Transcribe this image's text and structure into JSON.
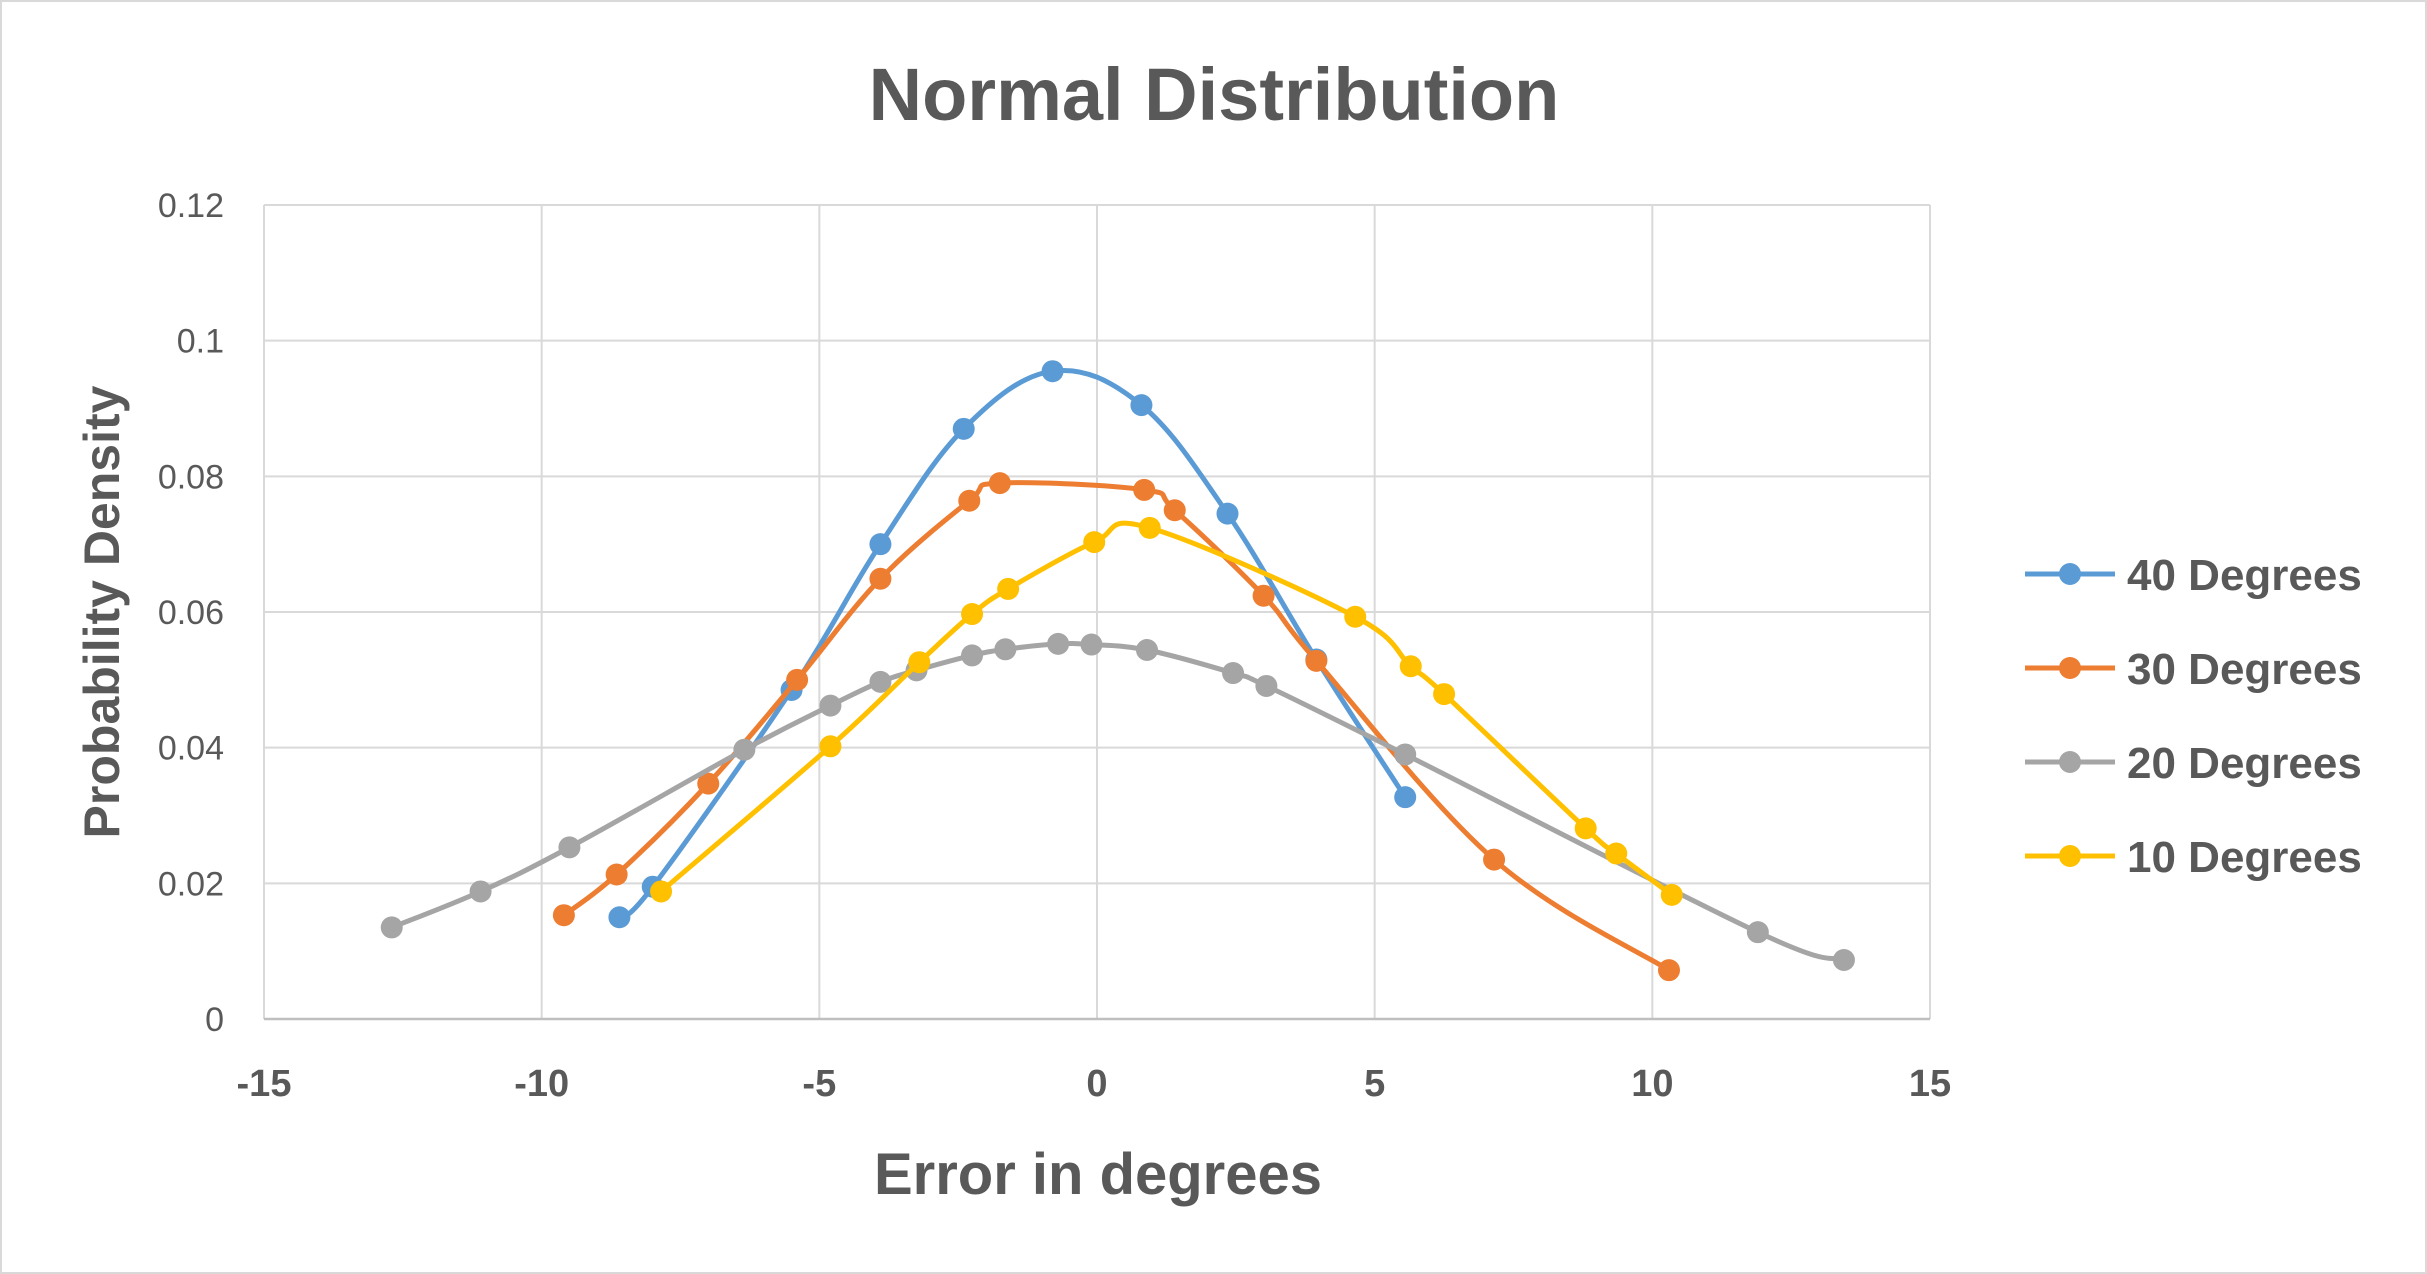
{
  "chart_data": {
    "type": "scatter",
    "title": "Normal Distribution",
    "xlabel": "Error in degrees",
    "ylabel": "Probability Density",
    "xlim": [
      -15,
      15
    ],
    "ylim": [
      0,
      0.12
    ],
    "x_ticks": [
      -15,
      -10,
      -5,
      0,
      5,
      10,
      15
    ],
    "y_ticks": [
      0,
      0.02,
      0.04,
      0.06,
      0.08,
      0.1,
      0.12
    ],
    "x_tick_labels": [
      "-15",
      "-10",
      "-5",
      "0",
      "5",
      "10",
      "15"
    ],
    "y_tick_labels": [
      "0",
      "0.02",
      "0.04",
      "0.06",
      "0.08",
      "0.1",
      "0.12"
    ],
    "grid": true,
    "smoothed_lines": true,
    "legend_position": "right",
    "series": [
      {
        "name": "40 Degrees",
        "color": "#5b9bd5",
        "points": [
          [
            -8.6,
            0.015
          ],
          [
            -8.0,
            0.0195
          ],
          [
            -5.5,
            0.0485
          ],
          [
            -3.9,
            0.07
          ],
          [
            -2.4,
            0.087
          ],
          [
            -0.8,
            0.0955
          ],
          [
            0.8,
            0.0905
          ],
          [
            2.35,
            0.0745
          ],
          [
            3.95,
            0.053
          ],
          [
            5.55,
            0.0327
          ]
        ]
      },
      {
        "name": "30 Degrees",
        "color": "#ed7d31",
        "points": [
          [
            -9.6,
            0.0153
          ],
          [
            -8.65,
            0.0213
          ],
          [
            -7.0,
            0.0347
          ],
          [
            -5.4,
            0.05
          ],
          [
            -3.9,
            0.0649
          ],
          [
            -2.3,
            0.0764
          ],
          [
            -1.75,
            0.079
          ],
          [
            0.85,
            0.078
          ],
          [
            1.4,
            0.075
          ],
          [
            3.0,
            0.0624
          ],
          [
            3.95,
            0.0528
          ],
          [
            7.15,
            0.0235
          ],
          [
            10.3,
            0.0072
          ]
        ]
      },
      {
        "name": "20 Degrees",
        "color": "#a5a5a5",
        "points": [
          [
            -12.7,
            0.0135
          ],
          [
            -11.1,
            0.0188
          ],
          [
            -9.5,
            0.0253
          ],
          [
            -6.35,
            0.0397
          ],
          [
            -4.8,
            0.0462
          ],
          [
            -3.9,
            0.0497
          ],
          [
            -3.25,
            0.0514
          ],
          [
            -2.25,
            0.0536
          ],
          [
            -1.65,
            0.0545
          ],
          [
            -0.7,
            0.0553
          ],
          [
            -0.1,
            0.0552
          ],
          [
            0.9,
            0.0544
          ],
          [
            2.45,
            0.051
          ],
          [
            3.05,
            0.0491
          ],
          [
            5.55,
            0.039
          ],
          [
            11.9,
            0.0128
          ],
          [
            13.45,
            0.0087
          ]
        ]
      },
      {
        "name": "10 Degrees",
        "color": "#ffc000",
        "points": [
          [
            -7.85,
            0.0188
          ],
          [
            -4.8,
            0.0402
          ],
          [
            -3.2,
            0.0526
          ],
          [
            -2.25,
            0.0597
          ],
          [
            -1.6,
            0.0634
          ],
          [
            -0.05,
            0.0703
          ],
          [
            0.95,
            0.0724
          ],
          [
            4.65,
            0.0593
          ],
          [
            5.65,
            0.052
          ],
          [
            6.25,
            0.0479
          ],
          [
            8.8,
            0.0281
          ],
          [
            9.35,
            0.0244
          ],
          [
            10.35,
            0.0183
          ]
        ]
      }
    ]
  }
}
